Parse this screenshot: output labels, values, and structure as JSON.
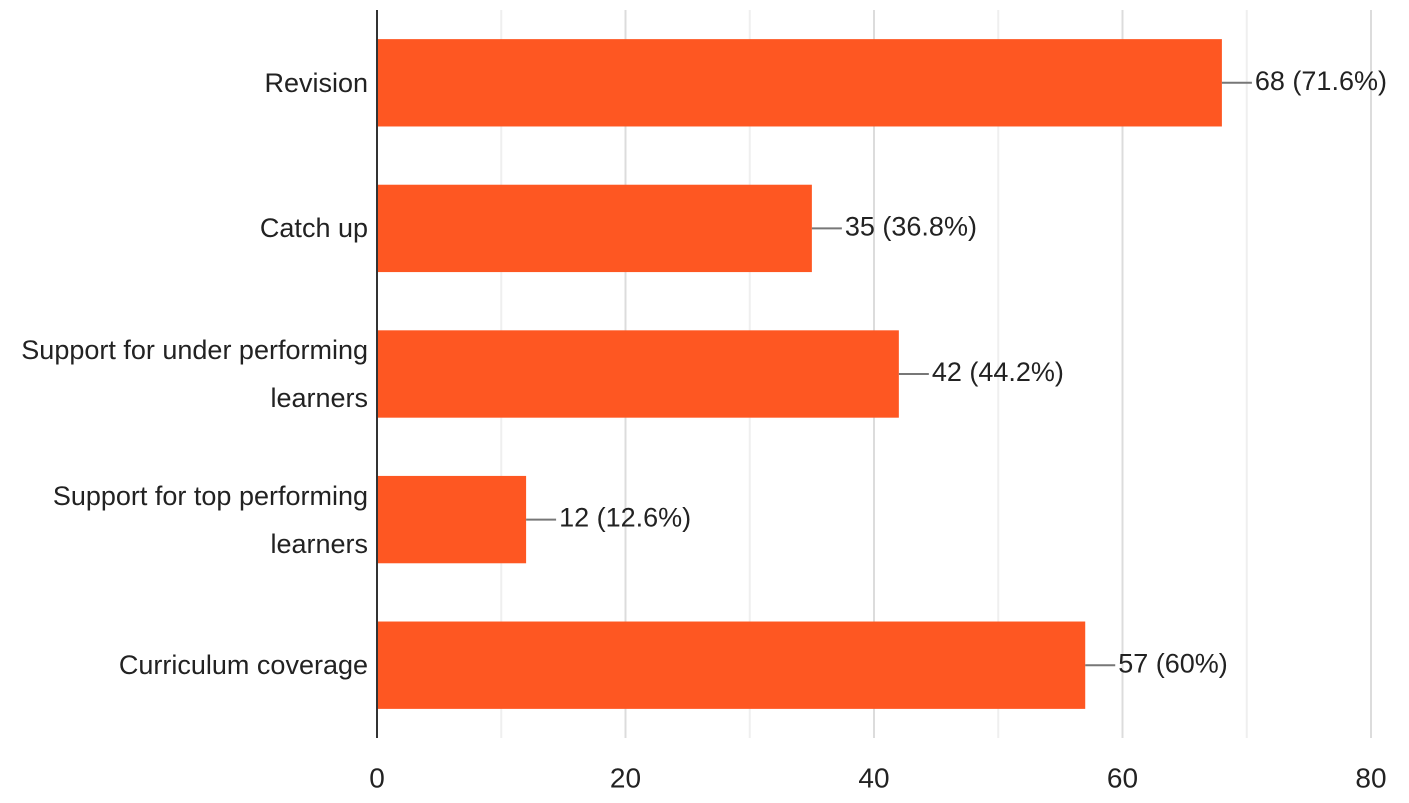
{
  "chart_data": {
    "type": "bar",
    "orientation": "horizontal",
    "categories": [
      "Revision",
      "Catch up",
      "Support for under performing learners",
      "Support for top performing learners",
      "Curriculum coverage"
    ],
    "values": [
      68,
      35,
      42,
      12,
      57
    ],
    "value_labels": [
      "68 (71.6%)",
      "35 (36.8%)",
      "42 (44.2%)",
      "12 (12.6%)",
      "57 (60%)"
    ],
    "color": "#fe5722",
    "xlim": [
      0,
      80
    ],
    "xticks": [
      0,
      20,
      40,
      60,
      80
    ],
    "minor_xticks": [
      10,
      30,
      50,
      70
    ],
    "grid": true
  }
}
